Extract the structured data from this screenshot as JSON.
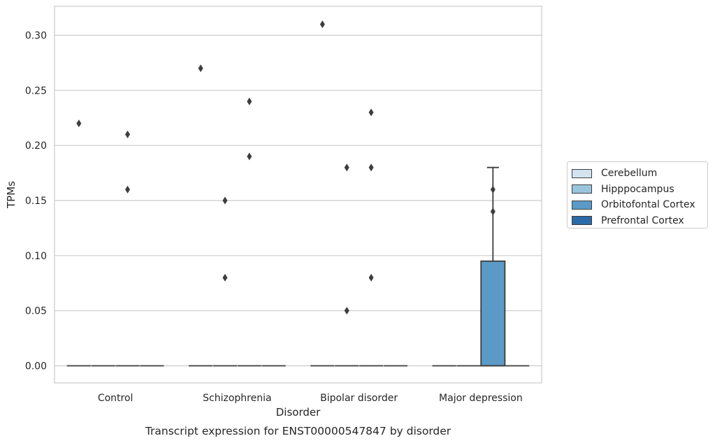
{
  "chart_data": {
    "type": "box",
    "title": "Transcript expression for ENST00000547847 by disorder",
    "xlabel": "Disorder",
    "ylabel": "TPMs",
    "ylim": [
      -0.015,
      0.325
    ],
    "yticks": [
      0.0,
      0.05,
      0.1,
      0.15,
      0.2,
      0.25,
      0.3
    ],
    "ytick_labels": [
      "0.00",
      "0.05",
      "0.10",
      "0.15",
      "0.20",
      "0.25",
      "0.30"
    ],
    "grid": "horizontal",
    "legend_position": "right",
    "categories": [
      "Control",
      "Schizophrenia",
      "Bipolar disorder",
      "Major depression"
    ],
    "hue": [
      "Cerebellum",
      "Hipppocampus",
      "Orbitofontal Cortex",
      "Prefrontal Cortex"
    ],
    "hue_colors": [
      "#d4e3f0",
      "#9ac6dd",
      "#5b9ac7",
      "#2b6ba8"
    ],
    "boxes": [
      {
        "category": "Control",
        "hue": "Cerebellum",
        "q1": 0,
        "median": 0,
        "q3": 0,
        "whisker_low": 0,
        "whisker_high": 0,
        "outliers": [
          0.22
        ]
      },
      {
        "category": "Control",
        "hue": "Hipppocampus",
        "q1": 0,
        "median": 0,
        "q3": 0,
        "whisker_low": 0,
        "whisker_high": 0,
        "outliers": []
      },
      {
        "category": "Control",
        "hue": "Orbitofontal Cortex",
        "q1": 0,
        "median": 0,
        "q3": 0,
        "whisker_low": 0,
        "whisker_high": 0,
        "outliers": [
          0.21,
          0.16
        ]
      },
      {
        "category": "Control",
        "hue": "Prefrontal Cortex",
        "q1": 0,
        "median": 0,
        "q3": 0,
        "whisker_low": 0,
        "whisker_high": 0,
        "outliers": []
      },
      {
        "category": "Schizophrenia",
        "hue": "Cerebellum",
        "q1": 0,
        "median": 0,
        "q3": 0,
        "whisker_low": 0,
        "whisker_high": 0,
        "outliers": [
          0.27
        ]
      },
      {
        "category": "Schizophrenia",
        "hue": "Hipppocampus",
        "q1": 0,
        "median": 0,
        "q3": 0,
        "whisker_low": 0,
        "whisker_high": 0,
        "outliers": [
          0.15,
          0.08
        ]
      },
      {
        "category": "Schizophrenia",
        "hue": "Orbitofontal Cortex",
        "q1": 0,
        "median": 0,
        "q3": 0,
        "whisker_low": 0,
        "whisker_high": 0,
        "outliers": [
          0.24,
          0.19
        ]
      },
      {
        "category": "Schizophrenia",
        "hue": "Prefrontal Cortex",
        "q1": 0,
        "median": 0,
        "q3": 0,
        "whisker_low": 0,
        "whisker_high": 0,
        "outliers": []
      },
      {
        "category": "Bipolar disorder",
        "hue": "Cerebellum",
        "q1": 0,
        "median": 0,
        "q3": 0,
        "whisker_low": 0,
        "whisker_high": 0,
        "outliers": [
          0.31
        ]
      },
      {
        "category": "Bipolar disorder",
        "hue": "Hipppocampus",
        "q1": 0,
        "median": 0,
        "q3": 0,
        "whisker_low": 0,
        "whisker_high": 0,
        "outliers": [
          0.18,
          0.05
        ]
      },
      {
        "category": "Bipolar disorder",
        "hue": "Orbitofontal Cortex",
        "q1": 0,
        "median": 0,
        "q3": 0,
        "whisker_low": 0,
        "whisker_high": 0,
        "outliers": [
          0.23,
          0.18,
          0.08
        ]
      },
      {
        "category": "Bipolar disorder",
        "hue": "Prefrontal Cortex",
        "q1": 0,
        "median": 0,
        "q3": 0,
        "whisker_low": 0,
        "whisker_high": 0,
        "outliers": []
      },
      {
        "category": "Major depression",
        "hue": "Cerebellum",
        "q1": 0,
        "median": 0,
        "q3": 0,
        "whisker_low": 0,
        "whisker_high": 0,
        "outliers": []
      },
      {
        "category": "Major depression",
        "hue": "Hipppocampus",
        "q1": 0,
        "median": 0,
        "q3": 0,
        "whisker_low": 0,
        "whisker_high": 0,
        "outliers": []
      },
      {
        "category": "Major depression",
        "hue": "Orbitofontal Cortex",
        "q1": 0,
        "median": 0,
        "q3": 0.095,
        "whisker_low": 0,
        "whisker_high": 0.18,
        "outliers": [
          0.16,
          0.14
        ]
      },
      {
        "category": "Major depression",
        "hue": "Prefrontal Cortex",
        "q1": 0,
        "median": 0,
        "q3": 0,
        "whisker_low": 0,
        "whisker_high": 0,
        "outliers": []
      }
    ]
  }
}
